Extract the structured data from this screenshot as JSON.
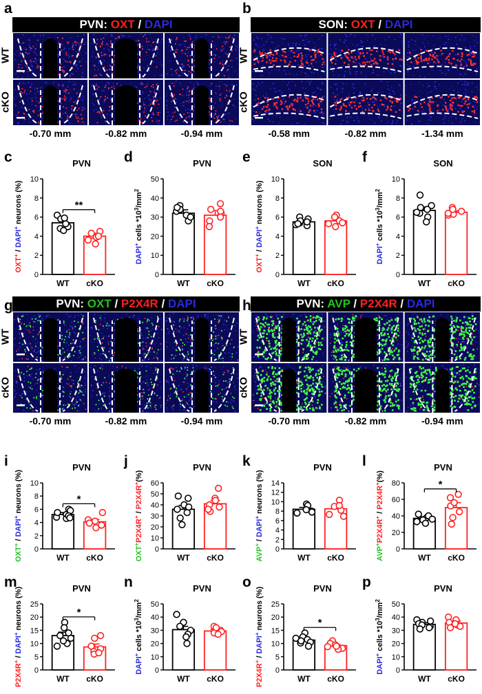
{
  "colors": {
    "wt": "#000000",
    "cko": "#ff2020",
    "red": "#ff2020",
    "green": "#22c422",
    "blue": "#2a2ae0"
  },
  "groups": [
    "WT",
    "cKO"
  ],
  "image_panels": [
    {
      "id": "a",
      "left": {
        "text": "PVN: "
      },
      "parts": [
        {
          "t": "OXT",
          "c": "red"
        },
        {
          "t": " / ",
          "c": "white"
        },
        {
          "t": "DAPI",
          "c": "blue"
        }
      ],
      "rows": [
        "WT",
        "cKO"
      ],
      "sections": [
        "-0.70 mm",
        "-0.82 mm",
        "-0.94 mm"
      ],
      "stain": "oxt",
      "region": "pvn"
    },
    {
      "id": "b",
      "left": {
        "text": "SON: "
      },
      "parts": [
        {
          "t": "OXT",
          "c": "red"
        },
        {
          "t": " / ",
          "c": "white"
        },
        {
          "t": "DAPI",
          "c": "blue"
        }
      ],
      "rows": [
        "WT",
        "cKO"
      ],
      "sections": [
        "-0.58 mm",
        "-0.82 mm",
        "-1.34 mm"
      ],
      "stain": "oxt",
      "region": "son"
    },
    {
      "id": "g",
      "left": {
        "text": "PVN: "
      },
      "parts": [
        {
          "t": "OXT",
          "c": "green"
        },
        {
          "t": " / ",
          "c": "white"
        },
        {
          "t": "P2X4R",
          "c": "red"
        },
        {
          "t": " / ",
          "c": "white"
        },
        {
          "t": "DAPI",
          "c": "blue"
        }
      ],
      "rows": [
        "WT",
        "cKO"
      ],
      "sections": [
        "-0.70 mm",
        "-0.82 mm",
        "-0.94 mm"
      ],
      "stain": "oxt-p2x4r",
      "region": "pvn"
    },
    {
      "id": "h",
      "left": {
        "text": "PVN: "
      },
      "parts": [
        {
          "t": "AVP",
          "c": "green"
        },
        {
          "t": " / ",
          "c": "white"
        },
        {
          "t": "P2X4R",
          "c": "red"
        },
        {
          "t": " / ",
          "c": "white"
        },
        {
          "t": "DAPI",
          "c": "blue"
        }
      ],
      "rows": [
        "WT",
        "cKO"
      ],
      "sections": [
        "-0.70 mm",
        "-0.82 mm",
        "-0.94 mm"
      ],
      "stain": "avp-p2x4r",
      "region": "pvn"
    }
  ],
  "chart_data": [
    {
      "id": "c",
      "type": "bar",
      "title": "PVN",
      "categories": [
        "WT",
        "cKO"
      ],
      "ylim": [
        0,
        10
      ],
      "yticks": [
        0,
        2,
        4,
        6,
        8,
        10
      ],
      "ylabel": [
        {
          "t": "OXT",
          "c": "red"
        },
        {
          "t": "+",
          "c": "red",
          "sup": true
        },
        {
          "t": " / ",
          "c": "black"
        },
        {
          "t": "DAPI",
          "c": "blue"
        },
        {
          "t": "+",
          "c": "blue",
          "sup": true
        },
        {
          "t": " neurons (%)",
          "c": "black"
        }
      ],
      "means": [
        5.4,
        4.0
      ],
      "sem": [
        0.35,
        0.3
      ],
      "points": [
        [
          5.0,
          6.2,
          5.8,
          4.8,
          5.3,
          5.9,
          4.6
        ],
        [
          4.1,
          3.6,
          4.5,
          3.2,
          4.3,
          3.9,
          4.0
        ]
      ],
      "sig": "**"
    },
    {
      "id": "d",
      "type": "bar",
      "title": "PVN",
      "categories": [
        "WT",
        "cKO"
      ],
      "ylim": [
        0,
        50
      ],
      "yticks": [
        0,
        10,
        20,
        30,
        40,
        50
      ],
      "ylabel": [
        {
          "t": "DAPI",
          "c": "blue"
        },
        {
          "t": "+",
          "c": "blue",
          "sup": true
        },
        {
          "t": " cells *10",
          "c": "black"
        },
        {
          "t": "3",
          "c": "black",
          "sup": true
        },
        {
          "t": "/mm",
          "c": "black"
        },
        {
          "t": "2",
          "c": "black",
          "sup": true
        }
      ],
      "means": [
        32,
        31
      ],
      "sem": [
        1.8,
        2.4
      ],
      "points": [
        [
          36,
          33,
          28,
          34,
          31,
          30,
          35
        ],
        [
          34,
          37,
          28,
          25,
          32,
          33,
          30
        ]
      ],
      "sig": ""
    },
    {
      "id": "e",
      "type": "bar",
      "title": "SON",
      "categories": [
        "WT",
        "cKO"
      ],
      "ylim": [
        0,
        10
      ],
      "yticks": [
        0,
        2,
        4,
        6,
        8,
        10
      ],
      "ylabel": [
        {
          "t": "OXT",
          "c": "red"
        },
        {
          "t": "+",
          "c": "red",
          "sup": true
        },
        {
          "t": " / ",
          "c": "black"
        },
        {
          "t": "DAPI",
          "c": "blue"
        },
        {
          "t": "+",
          "c": "blue",
          "sup": true
        },
        {
          "t": " neurons (%)",
          "c": "black"
        }
      ],
      "means": [
        5.5,
        5.6
      ],
      "sem": [
        0.2,
        0.3
      ],
      "points": [
        [
          5.8,
          5.2,
          6.0,
          5.4,
          5.1,
          5.6,
          5.5,
          5.3
        ],
        [
          6.2,
          5.0,
          5.6,
          6.0,
          5.3,
          5.4
        ]
      ],
      "sig": ""
    },
    {
      "id": "f",
      "type": "bar",
      "title": "SON",
      "categories": [
        "WT",
        "cKO"
      ],
      "ylim": [
        0,
        10
      ],
      "yticks": [
        0,
        2,
        4,
        6,
        8,
        10
      ],
      "ylabel": [
        {
          "t": "DAPI",
          "c": "blue"
        },
        {
          "t": "+",
          "c": "blue",
          "sup": true
        },
        {
          "t": " cells *10",
          "c": "black"
        },
        {
          "t": "3",
          "c": "black",
          "sup": true
        },
        {
          "t": "/mm",
          "c": "black"
        },
        {
          "t": "2",
          "c": "black",
          "sup": true
        }
      ],
      "means": [
        6.7,
        6.5
      ],
      "sem": [
        0.35,
        0.15
      ],
      "points": [
        [
          8.3,
          7.2,
          6.8,
          6.4,
          6.0,
          5.5,
          7.0,
          6.5
        ],
        [
          7.0,
          6.6,
          6.3,
          6.2,
          6.8,
          6.4
        ]
      ],
      "sig": ""
    },
    {
      "id": "i",
      "type": "bar",
      "title": "PVN",
      "categories": [
        "WT",
        "cKO"
      ],
      "ylim": [
        0,
        10
      ],
      "yticks": [
        0,
        2,
        4,
        6,
        8,
        10
      ],
      "ylabel": [
        {
          "t": "OXT",
          "c": "green"
        },
        {
          "t": "+",
          "c": "green",
          "sup": true
        },
        {
          "t": " / ",
          "c": "black"
        },
        {
          "t": "DAPI",
          "c": "blue"
        },
        {
          "t": "+",
          "c": "blue",
          "sup": true
        },
        {
          "t": " neurons (%)",
          "c": "black"
        }
      ],
      "means": [
        5.2,
        4.1
      ],
      "sem": [
        0.3,
        0.35
      ],
      "points": [
        [
          5.2,
          6.0,
          4.8,
          5.5,
          4.6,
          5.8,
          5.0,
          4.7
        ],
        [
          5.5,
          4.0,
          3.6,
          3.2,
          4.2,
          4.4,
          3.9
        ]
      ],
      "sig": "*"
    },
    {
      "id": "j",
      "type": "bar",
      "title": "PVN",
      "categories": [
        "WT",
        "cKO"
      ],
      "ylim": [
        0,
        60
      ],
      "yticks": [
        0,
        10,
        20,
        30,
        40,
        50,
        60
      ],
      "ylabel": [
        {
          "t": "OXT",
          "c": "green"
        },
        {
          "t": "+",
          "c": "green",
          "sup": true
        },
        {
          "t": "P2X4R",
          "c": "red"
        },
        {
          "t": "+",
          "c": "red",
          "sup": true
        },
        {
          "t": " / ",
          "c": "black"
        },
        {
          "t": "P2X4R",
          "c": "red"
        },
        {
          "t": "+",
          "c": "red",
          "sup": true
        },
        {
          "t": "(%)",
          "c": "black"
        }
      ],
      "means": [
        36,
        41
      ],
      "sem": [
        3.5,
        3
      ],
      "points": [
        [
          48,
          46,
          40,
          36,
          33,
          28,
          22,
          38
        ],
        [
          55,
          46,
          44,
          40,
          38,
          34,
          36
        ]
      ],
      "sig": ""
    },
    {
      "id": "k",
      "type": "bar",
      "title": "PVN",
      "categories": [
        "WT",
        "cKO"
      ],
      "ylim": [
        0,
        14
      ],
      "yticks": [
        0,
        2,
        4,
        6,
        8,
        10,
        12,
        14
      ],
      "ylabel": [
        {
          "t": "AVP",
          "c": "green"
        },
        {
          "t": "+",
          "c": "green",
          "sup": true
        },
        {
          "t": " / ",
          "c": "black"
        },
        {
          "t": "DAPI",
          "c": "blue"
        },
        {
          "t": "+",
          "c": "blue",
          "sup": true
        },
        {
          "t": " neurons (%)",
          "c": "black"
        }
      ],
      "means": [
        8.4,
        8.5
      ],
      "sem": [
        0.4,
        0.6
      ],
      "points": [
        [
          9.5,
          8.6,
          8.0,
          7.6,
          9.2,
          8.3,
          7.8
        ],
        [
          10.3,
          9.0,
          8.2,
          7.3,
          9.2,
          6.9
        ]
      ],
      "sig": ""
    },
    {
      "id": "l",
      "type": "bar",
      "title": "PVN",
      "categories": [
        "WT",
        "cKO"
      ],
      "ylim": [
        0,
        80
      ],
      "yticks": [
        0,
        20,
        40,
        60,
        80
      ],
      "ylabel": [
        {
          "t": "AVP",
          "c": "green"
        },
        {
          "t": "+",
          "c": "green",
          "sup": true
        },
        {
          "t": "P2X4R",
          "c": "red"
        },
        {
          "t": "+",
          "c": "red",
          "sup": true
        },
        {
          "t": " / ",
          "c": "black"
        },
        {
          "t": "P2X4R",
          "c": "red"
        },
        {
          "t": "+",
          "c": "red",
          "sup": true
        },
        {
          "t": "(%)",
          "c": "black"
        }
      ],
      "means": [
        37,
        50
      ],
      "sem": [
        2,
        6
      ],
      "points": [
        [
          42,
          38,
          35,
          33,
          40,
          36,
          31
        ],
        [
          66,
          62,
          52,
          45,
          38,
          30,
          56
        ]
      ],
      "sig": "*"
    },
    {
      "id": "m",
      "type": "bar",
      "title": "PVN",
      "categories": [
        "WT",
        "cKO"
      ],
      "ylim": [
        0,
        25
      ],
      "yticks": [
        0,
        5,
        10,
        15,
        20,
        25
      ],
      "ylabel": [
        {
          "t": "P2X4R",
          "c": "red"
        },
        {
          "t": "+",
          "c": "red",
          "sup": true
        },
        {
          "t": " / ",
          "c": "black"
        },
        {
          "t": "DAPI",
          "c": "blue"
        },
        {
          "t": "+",
          "c": "blue",
          "sup": true
        },
        {
          "t": " neurons (%)",
          "c": "black"
        }
      ],
      "means": [
        13,
        8.7
      ],
      "sem": [
        1.3,
        1.1
      ],
      "points": [
        [
          18,
          16,
          14,
          12,
          10,
          13,
          9,
          11
        ],
        [
          13,
          12,
          9,
          8,
          7,
          6,
          6.5
        ]
      ],
      "sig": "*"
    },
    {
      "id": "n",
      "type": "bar",
      "title": "PVN",
      "categories": [
        "WT",
        "cKO"
      ],
      "ylim": [
        0,
        50
      ],
      "yticks": [
        0,
        10,
        20,
        30,
        40,
        50
      ],
      "ylabel": [
        {
          "t": "DAPI",
          "c": "blue"
        },
        {
          "t": "+",
          "c": "blue",
          "sup": true
        },
        {
          "t": " cells *10",
          "c": "black"
        },
        {
          "t": "3",
          "c": "black",
          "sup": true
        },
        {
          "t": "/mm",
          "c": "black"
        },
        {
          "t": "2",
          "c": "black",
          "sup": true
        }
      ],
      "means": [
        30.5,
        29.5
      ],
      "sem": [
        2.5,
        1.2
      ],
      "points": [
        [
          42,
          36,
          33,
          30,
          27,
          25,
          20
        ],
        [
          33,
          31,
          30,
          29,
          28,
          27,
          32
        ]
      ],
      "sig": ""
    },
    {
      "id": "o",
      "type": "bar",
      "title": "PVN",
      "categories": [
        "WT",
        "cKO"
      ],
      "ylim": [
        0,
        25
      ],
      "yticks": [
        0,
        5,
        10,
        15,
        20,
        25
      ],
      "ylabel": [
        {
          "t": "P2X4R",
          "c": "red"
        },
        {
          "t": "+",
          "c": "red",
          "sup": true
        },
        {
          "t": " / ",
          "c": "black"
        },
        {
          "t": "DAPI",
          "c": "blue"
        },
        {
          "t": "+",
          "c": "blue",
          "sup": true
        },
        {
          "t": " neurons (%)",
          "c": "black"
        }
      ],
      "means": [
        11.3,
        9.2
      ],
      "sem": [
        0.7,
        0.5
      ],
      "points": [
        [
          14,
          12.5,
          11.5,
          10.5,
          9,
          12,
          10.2,
          11
        ],
        [
          11,
          10,
          9.5,
          8.8,
          8.2,
          7.8,
          9
        ]
      ],
      "sig": "*"
    },
    {
      "id": "p",
      "type": "bar",
      "title": "PVN",
      "categories": [
        "WT",
        "cKO"
      ],
      "ylim": [
        0,
        50
      ],
      "yticks": [
        0,
        10,
        20,
        30,
        40,
        50
      ],
      "ylabel": [
        {
          "t": "DAPI",
          "c": "blue"
        },
        {
          "t": "+",
          "c": "blue",
          "sup": true
        },
        {
          "t": " cells *10",
          "c": "black"
        },
        {
          "t": "3",
          "c": "black",
          "sup": true
        },
        {
          "t": "/mm",
          "c": "black"
        },
        {
          "t": "2",
          "c": "black",
          "sup": true
        }
      ],
      "means": [
        34.5,
        35.5
      ],
      "sem": [
        1.2,
        1.5
      ],
      "points": [
        [
          38,
          36,
          35,
          33,
          32,
          34,
          37,
          31
        ],
        [
          40,
          38,
          36,
          34,
          32,
          33,
          35
        ]
      ],
      "sig": ""
    }
  ]
}
